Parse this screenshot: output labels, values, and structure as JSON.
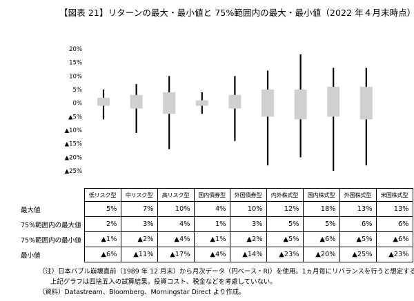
{
  "title": "【図表 21】リターンの最大・最小値と 75%範囲内の最大・最小値（2022 年４月末時点）",
  "chart_data": {
    "type": "box",
    "title": "【図表 21】リターンの最大・最小値と 75%範囲内の最大・最小値（2022 年４月末時点）",
    "categories": [
      "低リスク型",
      "中リスク型",
      "高リスク型",
      "国内債券型",
      "外国債券型",
      "内外株式型",
      "国内株式型",
      "外国株式型",
      "米国株式型"
    ],
    "max": [
      5,
      7,
      10,
      4,
      10,
      12,
      18,
      13,
      13
    ],
    "q75_max": [
      2,
      3,
      4,
      1,
      3,
      5,
      5,
      6,
      6
    ],
    "q75_min": [
      -1,
      -2,
      -4,
      -1,
      -2,
      -5,
      -6,
      -5,
      -6
    ],
    "min": [
      -6,
      -11,
      -17,
      -4,
      -14,
      -23,
      -20,
      -25,
      -23
    ],
    "ylim": [
      -25,
      20
    ],
    "y_ticks": [
      20,
      15,
      10,
      5,
      0,
      -5,
      -10,
      -15,
      -20,
      -25
    ],
    "y_tick_labels": [
      "20%",
      "15%",
      "10%",
      "5%",
      "0%",
      "▲5%",
      "▲10%",
      "▲15%",
      "▲20%",
      "▲25%"
    ],
    "box_color": "#d0d0d0",
    "whisker_color": "#000000",
    "grid": false
  },
  "table": {
    "headers": [
      "低リスク型",
      "中リスク型",
      "高リスク型",
      "国内債券型",
      "外国債券型",
      "内外株式型",
      "国内株式型",
      "外国株式型",
      "米国株式型"
    ],
    "rows": [
      {
        "label": "最大値",
        "cells": [
          "5%",
          "7%",
          "10%",
          "4%",
          "10%",
          "12%",
          "18%",
          "13%",
          "13%"
        ]
      },
      {
        "label": "75%範囲内の最大値",
        "cells": [
          "2%",
          "3%",
          "4%",
          "1%",
          "3%",
          "5%",
          "5%",
          "6%",
          "6%"
        ]
      },
      {
        "label": "75%範囲内の最小値",
        "cells": [
          "▲1%",
          "▲2%",
          "▲4%",
          "▲1%",
          "▲2%",
          "▲5%",
          "▲6%",
          "▲5%",
          "▲6%"
        ]
      },
      {
        "label": "最小値",
        "cells": [
          "▲6%",
          "▲11%",
          "▲17%",
          "▲4%",
          "▲14%",
          "▲23%",
          "▲20%",
          "▲25%",
          "▲23%"
        ]
      }
    ]
  },
  "notes": {
    "line1": "（注）日本バブル崩壊直前（1989 年 12 月末）から月次データ（円ベース・RI）を使用。1ヵ月毎にリバランスを行うと想定する。",
    "line2": "上記グラフは四捨五入の試算結果。投資コスト、税金などを考慮していない。",
    "line3": "（資料）Datastream、Bloomberg、Morningstar Direct より作成。"
  }
}
